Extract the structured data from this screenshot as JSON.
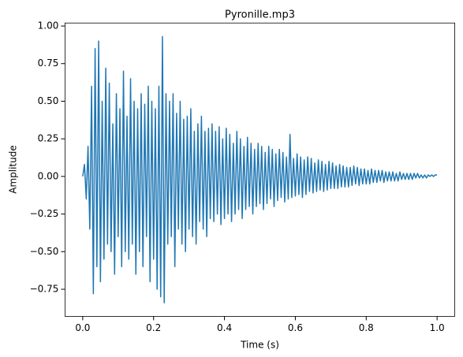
{
  "chart_data": {
    "type": "line",
    "title": "Pyronille.mp3",
    "xlabel": "Time (s)",
    "ylabel": "Amplitude",
    "color": "#1f77b4",
    "xlim": [
      -0.05,
      1.05
    ],
    "ylim": [
      -0.93,
      1.02
    ],
    "xticks": [
      {
        "value": 0,
        "label": "0.0"
      },
      0.2,
      0.4,
      0.6,
      0.8,
      {
        "value": 1,
        "label": "1.0"
      }
    ],
    "yticks": [
      {
        "value": -0.75,
        "label": "−0.75"
      },
      {
        "value": -0.5,
        "label": "−0.50"
      },
      {
        "value": -0.25,
        "label": "−0.25"
      },
      {
        "value": 0,
        "label": "0.00"
      },
      0.25,
      {
        "value": 0.5,
        "label": "0.50"
      },
      0.75,
      {
        "value": 1,
        "label": "1.00"
      }
    ],
    "x": [
      0,
      0.005,
      0.01,
      0.015,
      0.02,
      0.025,
      0.03,
      0.035,
      0.04,
      0.045,
      0.05,
      0.055,
      0.06,
      0.065,
      0.07,
      0.075,
      0.08,
      0.085,
      0.09,
      0.095,
      0.1,
      0.105,
      0.11,
      0.115,
      0.12,
      0.125,
      0.13,
      0.135,
      0.14,
      0.145,
      0.15,
      0.155,
      0.16,
      0.165,
      0.17,
      0.175,
      0.18,
      0.185,
      0.19,
      0.195,
      0.2,
      0.205,
      0.21,
      0.215,
      0.22,
      0.225,
      0.23,
      0.235,
      0.24,
      0.245,
      0.25,
      0.255,
      0.26,
      0.265,
      0.27,
      0.275,
      0.28,
      0.285,
      0.29,
      0.295,
      0.3,
      0.305,
      0.31,
      0.315,
      0.32,
      0.325,
      0.33,
      0.335,
      0.34,
      0.345,
      0.35,
      0.355,
      0.36,
      0.365,
      0.37,
      0.375,
      0.38,
      0.385,
      0.39,
      0.395,
      0.4,
      0.405,
      0.41,
      0.415,
      0.42,
      0.425,
      0.43,
      0.435,
      0.44,
      0.445,
      0.45,
      0.455,
      0.46,
      0.465,
      0.47,
      0.475,
      0.48,
      0.485,
      0.49,
      0.495,
      0.5,
      0.505,
      0.51,
      0.515,
      0.52,
      0.525,
      0.53,
      0.535,
      0.54,
      0.545,
      0.55,
      0.555,
      0.56,
      0.565,
      0.57,
      0.575,
      0.58,
      0.585,
      0.59,
      0.595,
      0.6,
      0.605,
      0.61,
      0.615,
      0.62,
      0.625,
      0.63,
      0.635,
      0.64,
      0.645,
      0.65,
      0.655,
      0.66,
      0.665,
      0.67,
      0.675,
      0.68,
      0.685,
      0.69,
      0.695,
      0.7,
      0.705,
      0.71,
      0.715,
      0.72,
      0.725,
      0.73,
      0.735,
      0.74,
      0.745,
      0.75,
      0.755,
      0.76,
      0.765,
      0.77,
      0.775,
      0.78,
      0.785,
      0.79,
      0.795,
      0.8,
      0.805,
      0.81,
      0.815,
      0.82,
      0.825,
      0.83,
      0.835,
      0.84,
      0.845,
      0.85,
      0.855,
      0.86,
      0.865,
      0.87,
      0.875,
      0.88,
      0.885,
      0.89,
      0.895,
      0.9,
      0.905,
      0.91,
      0.915,
      0.92,
      0.925,
      0.93,
      0.935,
      0.94,
      0.945,
      0.95,
      0.955,
      0.96,
      0.965,
      0.97,
      0.975,
      0.98,
      0.985,
      0.99,
      0.995,
      1
    ],
    "values": [
      0,
      0.08,
      -0.15,
      0.2,
      -0.35,
      0.6,
      -0.78,
      0.85,
      -0.6,
      0.9,
      -0.7,
      0.5,
      -0.55,
      0.72,
      -0.45,
      0.62,
      -0.5,
      0.35,
      -0.65,
      0.55,
      -0.4,
      0.45,
      -0.6,
      0.7,
      -0.5,
      0.4,
      -0.55,
      0.65,
      -0.45,
      0.5,
      -0.65,
      0.45,
      -0.5,
      0.55,
      -0.6,
      0.48,
      -0.4,
      0.6,
      -0.7,
      0.5,
      -0.55,
      0.45,
      -0.75,
      0.6,
      -0.8,
      0.93,
      -0.84,
      0.55,
      -0.45,
      0.5,
      -0.4,
      0.55,
      -0.6,
      0.42,
      -0.35,
      0.5,
      -0.45,
      0.38,
      -0.5,
      0.4,
      -0.35,
      0.45,
      -0.4,
      0.3,
      -0.45,
      0.35,
      -0.3,
      0.4,
      -0.35,
      0.3,
      -0.4,
      0.32,
      -0.28,
      0.35,
      -0.3,
      0.3,
      -0.25,
      0.33,
      -0.32,
      0.25,
      -0.28,
      0.32,
      -0.25,
      0.28,
      -0.3,
      0.22,
      -0.25,
      0.3,
      -0.22,
      0.25,
      -0.28,
      0.2,
      -0.22,
      0.26,
      -0.2,
      0.22,
      -0.25,
      0.18,
      -0.2,
      0.22,
      -0.18,
      0.2,
      -0.22,
      0.16,
      -0.18,
      0.2,
      -0.15,
      0.18,
      -0.2,
      0.15,
      -0.16,
      0.18,
      -0.14,
      0.16,
      -0.17,
      0.13,
      -0.15,
      0.28,
      -0.14,
      0.12,
      -0.13,
      0.15,
      -0.12,
      0.13,
      -0.14,
      0.11,
      -0.12,
      0.13,
      -0.1,
      0.12,
      -0.11,
      0.09,
      -0.1,
      0.11,
      -0.09,
      0.1,
      -0.1,
      0.08,
      -0.09,
      0.1,
      -0.08,
      0.09,
      -0.08,
      0.07,
      -0.08,
      0.08,
      -0.07,
      0.07,
      -0.07,
      0.06,
      -0.07,
      0.06,
      -0.06,
      0.07,
      -0.05,
      0.06,
      -0.06,
      0.05,
      -0.05,
      0.05,
      -0.05,
      0.04,
      -0.05,
      0.05,
      -0.04,
      0.04,
      -0.04,
      0.04,
      -0.03,
      0.04,
      -0.04,
      0.03,
      -0.03,
      0.03,
      -0.03,
      0.03,
      -0.03,
      0.02,
      -0.03,
      0.03,
      -0.02,
      0.02,
      -0.02,
      0.02,
      -0.02,
      0.02,
      -0.02,
      0.02,
      -0.01,
      0.02,
      -0.01,
      0.01,
      -0.01,
      0.01,
      -0.01,
      0.01,
      0,
      0.01,
      0,
      0.01,
      0.01
    ]
  }
}
